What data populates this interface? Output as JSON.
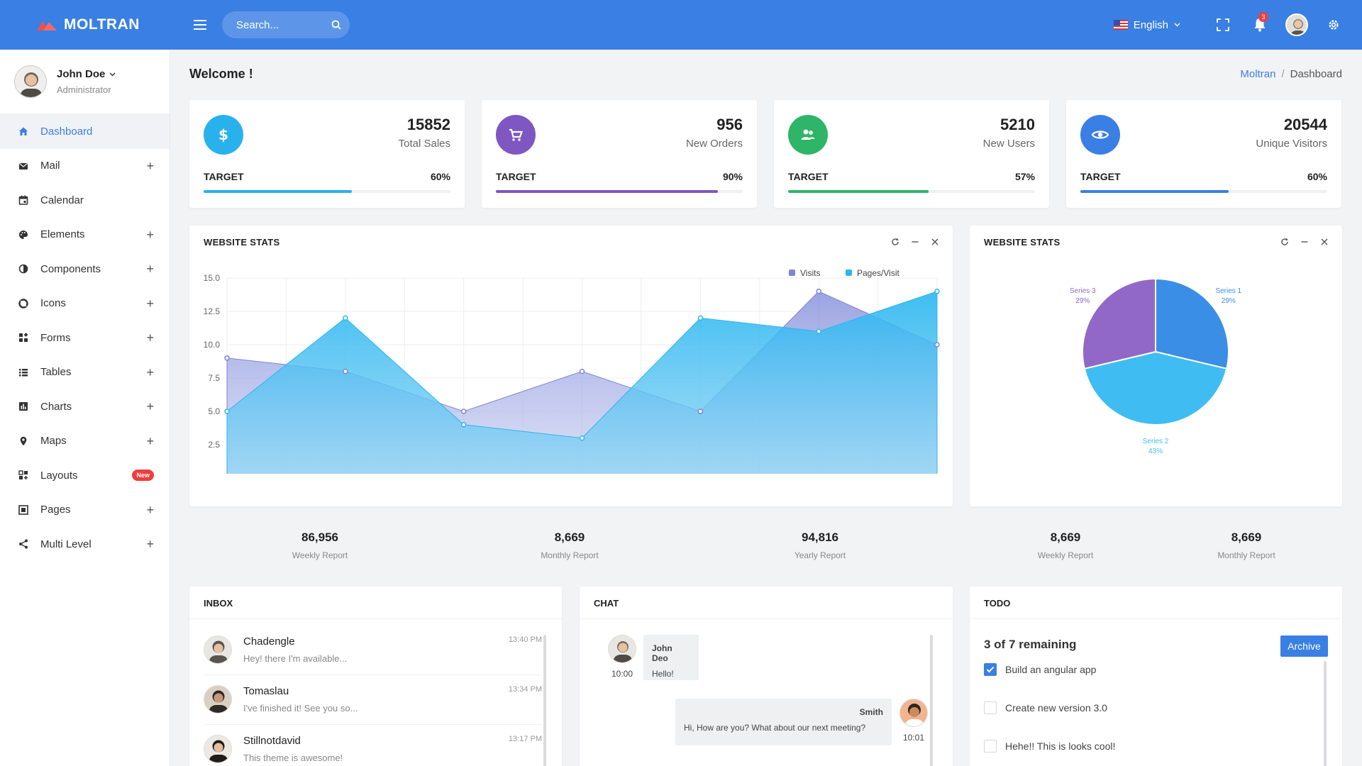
{
  "brand": {
    "name": "MOLTRAN"
  },
  "header": {
    "search_placeholder": "Search...",
    "language": "English",
    "notification_count": "3"
  },
  "user": {
    "name": "John Doe",
    "role": "Administrator"
  },
  "sidebar": {
    "items": [
      {
        "label": "Dashboard",
        "icon": "home-icon",
        "expand": "",
        "active": true
      },
      {
        "label": "Mail",
        "icon": "mail-icon",
        "expand": "+"
      },
      {
        "label": "Calendar",
        "icon": "calendar-icon",
        "expand": ""
      },
      {
        "label": "Elements",
        "icon": "palette-icon",
        "expand": "+"
      },
      {
        "label": "Components",
        "icon": "contrast-icon",
        "expand": "+"
      },
      {
        "label": "Icons",
        "icon": "life-ring-icon",
        "expand": "+"
      },
      {
        "label": "Forms",
        "icon": "widgets-icon",
        "expand": "+"
      },
      {
        "label": "Tables",
        "icon": "list-icon",
        "expand": "+"
      },
      {
        "label": "Charts",
        "icon": "bar-chart-icon",
        "expand": "+"
      },
      {
        "label": "Maps",
        "icon": "map-pin-icon",
        "expand": "+"
      },
      {
        "label": "Layouts",
        "icon": "layouts-icon",
        "badge": "New"
      },
      {
        "label": "Pages",
        "icon": "pages-icon",
        "expand": "+"
      },
      {
        "label": "Multi Level",
        "icon": "share-icon",
        "expand": "+"
      }
    ]
  },
  "page": {
    "title": "Welcome !",
    "breadcrumb": {
      "root": "Moltran",
      "separator": "/",
      "current": "Dashboard"
    }
  },
  "stats": [
    {
      "value": "15852",
      "label": "Total Sales",
      "target_label": "TARGET",
      "percent": "60%",
      "fill": 0.6,
      "color": "#29b1ee",
      "icon": "dollar-icon"
    },
    {
      "value": "956",
      "label": "New Orders",
      "target_label": "TARGET",
      "percent": "90%",
      "fill": 0.9,
      "color": "#7e57c2",
      "icon": "cart-icon"
    },
    {
      "value": "5210",
      "label": "New Users",
      "target_label": "TARGET",
      "percent": "57%",
      "fill": 0.57,
      "color": "#2fb567",
      "icon": "users-icon"
    },
    {
      "value": "20544",
      "label": "Unique Visitors",
      "target_label": "TARGET",
      "percent": "60%",
      "fill": 0.6,
      "color": "#3a7fe3",
      "icon": "eye-icon"
    }
  ],
  "website_stats_area": {
    "title": "WEBSITE STATS",
    "summary": [
      {
        "value": "86,956",
        "label": "Weekly Report"
      },
      {
        "value": "8,669",
        "label": "Monthly Report"
      },
      {
        "value": "94,816",
        "label": "Yearly Report"
      }
    ]
  },
  "website_stats_pie": {
    "title": "WEBSITE STATS",
    "summary": [
      {
        "value": "8,669",
        "label": "Weekly Report"
      },
      {
        "value": "8,669",
        "label": "Monthly Report"
      }
    ]
  },
  "chart_data": [
    {
      "type": "area",
      "x": [
        0,
        1,
        2,
        3,
        4,
        5,
        6
      ],
      "series": [
        {
          "name": "Visits",
          "values": [
            9,
            8,
            5,
            8,
            5,
            14,
            10
          ],
          "color": "#7a86d8"
        },
        {
          "name": "Pages/Visit",
          "values": [
            5,
            12,
            4,
            3,
            12,
            11,
            14
          ],
          "color": "#29b6f0"
        }
      ],
      "ylim": [
        0,
        15
      ],
      "yticks": [
        "0.0",
        "2.5",
        "5.0",
        "7.5",
        "10.0",
        "12.5",
        "15.0"
      ],
      "xticks": [
        "0.0",
        "0.5",
        "1.0",
        "1.5",
        "2.0",
        "2.5",
        "3.0",
        "3.5",
        "4.0",
        "4.5",
        "5.0",
        "5.5",
        "6.0"
      ],
      "grid": true,
      "legend": "top-right"
    },
    {
      "type": "pie",
      "slices": [
        {
          "name": "Series 1",
          "value": 29,
          "label": "29%",
          "color": "#3a8ee6"
        },
        {
          "name": "Series 2",
          "value": 43,
          "label": "43%",
          "color": "#3fbdf2"
        },
        {
          "name": "Series 3",
          "value": 29,
          "label": "29%",
          "color": "#9168c7"
        }
      ]
    }
  ],
  "inbox": {
    "title": "INBOX",
    "items": [
      {
        "name": "Chadengle",
        "message": "Hey! there I'm available...",
        "time": "13:40 PM"
      },
      {
        "name": "Tomaslau",
        "message": "I've finished it! See you so...",
        "time": "13:34 PM"
      },
      {
        "name": "Stillnotdavid",
        "message": "This theme is awesome!",
        "time": "13:17 PM"
      }
    ]
  },
  "chat": {
    "title": "CHAT",
    "messages": [
      {
        "author": "John Deo",
        "text": "Hello!",
        "time": "10:00"
      },
      {
        "author": "Smith",
        "text": "Hi, How are you? What about our next meeting?",
        "time": "10:01"
      }
    ]
  },
  "todo": {
    "title": "TODO",
    "remaining": "3 of 7 remaining",
    "archive_label": "Archive",
    "items": [
      {
        "text": "Build an angular app",
        "done": true
      },
      {
        "text": "Create new version 3.0",
        "done": false
      },
      {
        "text": "Hehe!! This is looks cool!",
        "done": false
      }
    ]
  }
}
